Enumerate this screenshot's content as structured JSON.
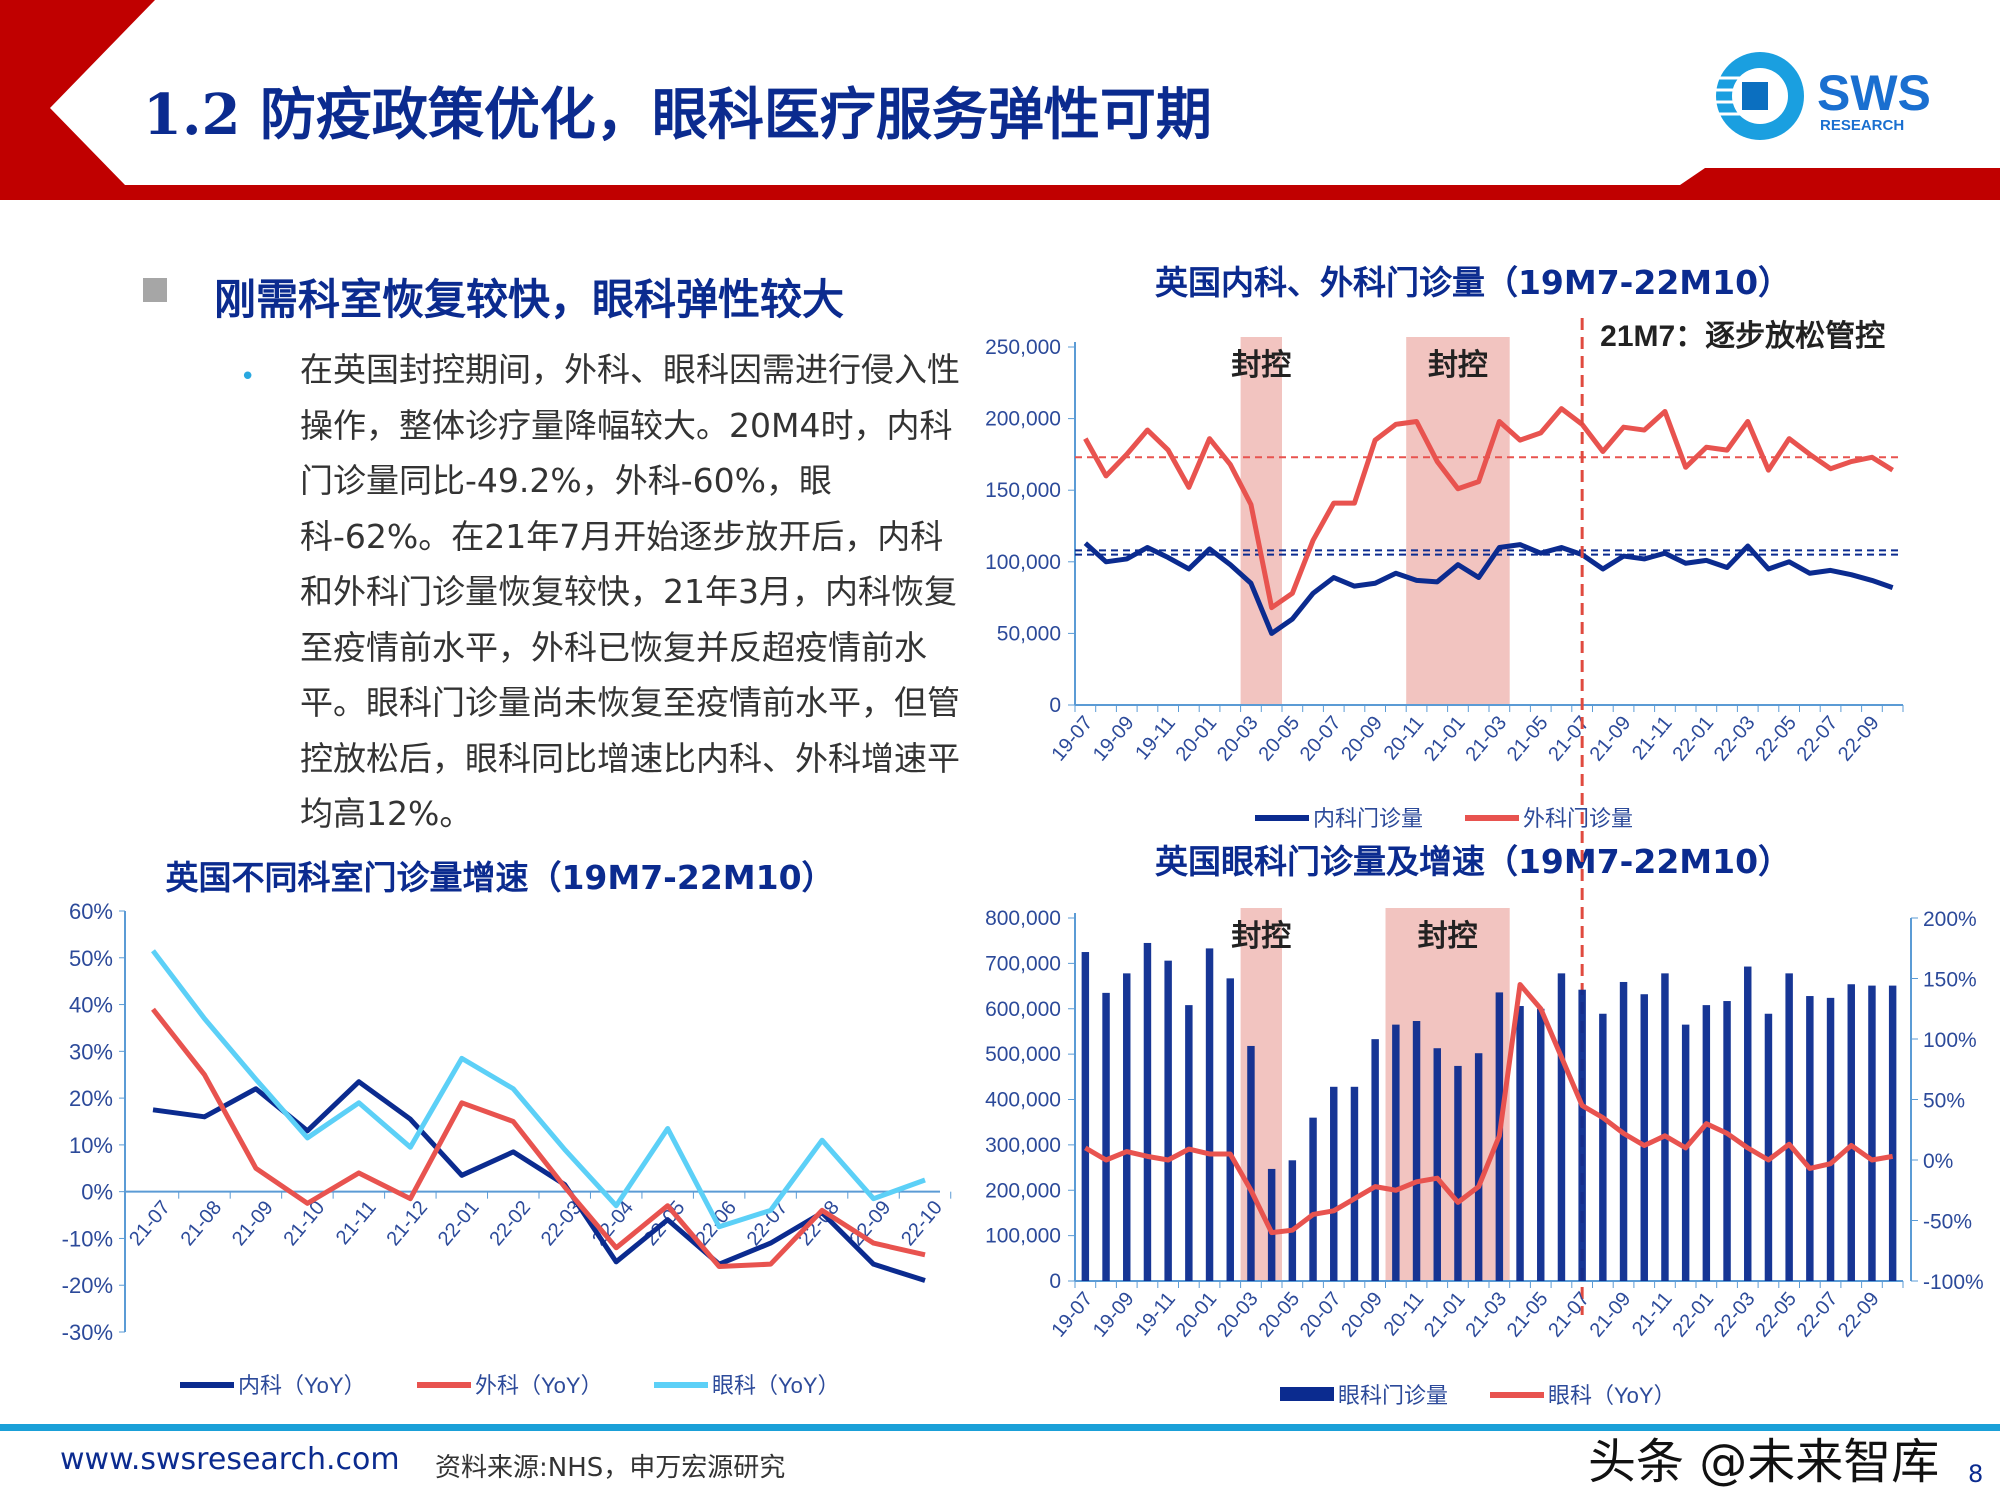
{
  "header": {
    "title": "1.2 防疫政策优化，眼科医疗服务弹性可期",
    "logo_text": "SWS",
    "logo_subtext": "RESEARCH"
  },
  "section": {
    "heading": "刚需科室恢复较快，眼科弹性较大",
    "bullet": "在英国封控期间，外科、眼科因需进行侵入性操作，整体诊疗量降幅较大。20M4时，内科门诊量同比-49.2%，外科-60%，眼科-62%。在21年7月开始逐步放开后，内科和外科门诊量恢复较快，21年3月，内科恢复至疫情前水平，外科已恢复并反超疫情前水平。眼科门诊量尚未恢复至疫情前水平，但管控放松后，眼科同比增速比内科、外科增速平均高12%。"
  },
  "footer": {
    "url": "www.swsresearch.com",
    "source": "资料来源:NHS，申万宏源研究",
    "watermark": "头条 @未来智库",
    "page": "8"
  },
  "colors": {
    "navy": "#0b2b8f",
    "red": "#e8534f",
    "light_blue": "#5cd0f7",
    "shade": "#f2c4c0",
    "footer_line": "#1aa0d8"
  },
  "chart_data": [
    {
      "type": "line",
      "title": "英国内科、外科门诊量（19M7-22M10）",
      "x": [
        "19-07",
        "19-08",
        "19-09",
        "19-10",
        "19-11",
        "19-12",
        "20-01",
        "20-02",
        "20-03",
        "20-04",
        "20-05",
        "20-06",
        "20-07",
        "20-08",
        "20-09",
        "20-10",
        "20-11",
        "20-12",
        "21-01",
        "21-02",
        "21-03",
        "21-04",
        "21-05",
        "21-06",
        "21-07",
        "21-08",
        "21-09",
        "21-10",
        "21-11",
        "21-12",
        "22-01",
        "22-02",
        "22-03",
        "22-04",
        "22-05",
        "22-06",
        "22-07",
        "22-08",
        "22-09",
        "22-10"
      ],
      "series": [
        {
          "name": "内科门诊量",
          "color": "#0b2b8f",
          "values": [
            113000,
            100000,
            102000,
            110000,
            103000,
            95000,
            109000,
            98000,
            85000,
            50000,
            60000,
            78000,
            89000,
            83000,
            85000,
            92000,
            87000,
            86000,
            98000,
            89000,
            110000,
            112000,
            106000,
            110000,
            105000,
            95000,
            104000,
            102000,
            106000,
            99000,
            101000,
            96000,
            111000,
            95000,
            100000,
            92000,
            94000,
            91000,
            87000,
            82000
          ]
        },
        {
          "name": "外科门诊量",
          "color": "#e8534f",
          "values": [
            186000,
            160000,
            175000,
            192000,
            178000,
            152000,
            186000,
            168000,
            140000,
            68000,
            78000,
            115000,
            141000,
            141000,
            185000,
            196000,
            198000,
            170000,
            151000,
            156000,
            198000,
            185000,
            190000,
            207000,
            196000,
            177000,
            194000,
            192000,
            205000,
            166000,
            180000,
            178000,
            198000,
            164000,
            186000,
            175000,
            165000,
            170000,
            173000,
            164000
          ]
        }
      ],
      "reference_lines": [
        {
          "value": 173000,
          "color": "#e8534f"
        },
        {
          "value": 105000,
          "color": "#0b2b8f"
        },
        {
          "value": 108000,
          "color": "#0b2b8f"
        }
      ],
      "shaded_periods": [
        {
          "from": "20-03",
          "to": "20-04",
          "label": "封控"
        },
        {
          "from": "20-11",
          "to": "21-03",
          "label": "封控"
        }
      ],
      "annotation": {
        "at": "21-07",
        "label": "21M7：逐步放松管控"
      },
      "yticks": [
        "0",
        "50,000",
        "100,000",
        "150,000",
        "200,000",
        "250,000"
      ],
      "ylim": [
        0,
        250000
      ],
      "xtick_labels": [
        "19-07",
        "19-09",
        "19-11",
        "20-01",
        "20-03",
        "20-05",
        "20-07",
        "20-09",
        "20-11",
        "21-01",
        "21-03",
        "21-05",
        "21-07",
        "21-09",
        "21-11",
        "22-01",
        "22-03",
        "22-05",
        "22-07",
        "22-09"
      ],
      "legend": "bottom"
    },
    {
      "type": "line",
      "title": "英国不同科室门诊量增速（19M7-22M10）",
      "x": [
        "21-07",
        "21-08",
        "21-09",
        "21-10",
        "21-11",
        "21-12",
        "22-01",
        "22-02",
        "22-03",
        "22-04",
        "22-05",
        "22-06",
        "22-07",
        "22-08",
        "22-09",
        "22-10"
      ],
      "series": [
        {
          "name": "内科（YoY）",
          "color": "#0b2b8f",
          "values": [
            17.5,
            16,
            22,
            13,
            23.5,
            15.5,
            3.5,
            8.5,
            1.5,
            -15,
            -6,
            -15.5,
            -11,
            -4.5,
            -15.5,
            -19
          ]
        },
        {
          "name": "外科（YoY）",
          "color": "#e8534f",
          "values": [
            39,
            25,
            5,
            -2.5,
            4,
            -1.5,
            19,
            15,
            1,
            -12,
            -3,
            -16,
            -15.5,
            -4,
            -11,
            -13.5
          ]
        },
        {
          "name": "眼科（YoY）",
          "color": "#5cd0f7",
          "values": [
            51.5,
            37,
            24,
            11.5,
            19,
            9.5,
            28.5,
            22,
            9,
            -3,
            13.5,
            -7.5,
            -4,
            11,
            -1.5,
            2.5
          ]
        }
      ],
      "yticks": [
        "-30%",
        "-20%",
        "-10%",
        "0%",
        "10%",
        "20%",
        "30%",
        "40%",
        "50%",
        "60%"
      ],
      "ylim": [
        -30,
        60
      ],
      "legend": "bottom"
    },
    {
      "type": "bar+line",
      "title": "英国眼科门诊量及增速（19M7-22M10）",
      "x": [
        "19-07",
        "19-08",
        "19-09",
        "19-10",
        "19-11",
        "19-12",
        "20-01",
        "20-02",
        "20-03",
        "20-04",
        "20-05",
        "20-06",
        "20-07",
        "20-08",
        "20-09",
        "20-10",
        "20-11",
        "20-12",
        "21-01",
        "21-02",
        "21-03",
        "21-04",
        "21-05",
        "21-06",
        "21-07",
        "21-08",
        "21-09",
        "21-10",
        "21-11",
        "21-12",
        "22-01",
        "22-02",
        "22-03",
        "22-04",
        "22-05",
        "22-06",
        "22-07",
        "22-08",
        "22-09",
        "22-10"
      ],
      "bars": {
        "name": "眼科门诊量",
        "color": "#0b2b8f",
        "values": [
          725000,
          635000,
          678000,
          745000,
          706000,
          608000,
          733000,
          667000,
          518000,
          247000,
          266000,
          360000,
          428000,
          428000,
          533000,
          565000,
          573000,
          513000,
          474000,
          502000,
          636000,
          606000,
          600000,
          678000,
          642000,
          589000,
          659000,
          632000,
          678000,
          565000,
          608000,
          617000,
          693000,
          589000,
          678000,
          628000,
          624000,
          654000,
          651000,
          651000
        ]
      },
      "line": {
        "name": "眼科（YoY）",
        "color": "#e8534f",
        "axis": "right",
        "values": [
          10,
          0,
          7,
          3,
          0,
          9,
          5,
          5,
          -25,
          -60,
          -58,
          -45,
          -42,
          -32,
          -22,
          -25,
          -18,
          -15,
          -35,
          -22,
          20,
          145,
          125,
          85,
          45,
          35,
          22,
          12,
          20,
          10,
          30,
          22,
          10,
          0,
          13,
          -7,
          -3,
          12,
          0,
          3
        ]
      },
      "shaded_periods": [
        {
          "from": "20-03",
          "to": "20-04",
          "label": "封控"
        },
        {
          "from": "20-10",
          "to": "21-03",
          "label": "封控"
        }
      ],
      "yticks_left": [
        "0",
        "100,000",
        "200,000",
        "300,000",
        "400,000",
        "500,000",
        "600,000",
        "700,000",
        "800,000"
      ],
      "ylim_left": [
        0,
        800000
      ],
      "yticks_right": [
        "-100%",
        "-50%",
        "0%",
        "50%",
        "100%",
        "150%",
        "200%"
      ],
      "ylim_right": [
        -100,
        200
      ],
      "xtick_labels": [
        "19-07",
        "19-09",
        "19-11",
        "20-01",
        "20-03",
        "20-05",
        "20-07",
        "20-09",
        "20-11",
        "21-01",
        "21-03",
        "21-05",
        "21-07",
        "21-09",
        "21-11",
        "22-01",
        "22-03",
        "22-05",
        "22-07",
        "22-09"
      ],
      "legend": "bottom"
    }
  ]
}
